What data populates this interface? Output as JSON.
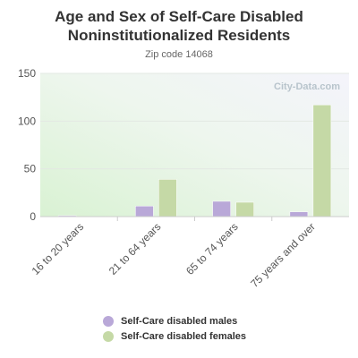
{
  "chart_data": {
    "type": "bar",
    "title": "Age and Sex of Self-Care Disabled Noninstitutionalized Residents",
    "title_lines": [
      "Age and Sex of Self-Care Disabled",
      "Noninstitutionalized Residents"
    ],
    "subtitle": "Zip code 14068",
    "watermark": "City-Data.com",
    "categories": [
      "16 to 20 years",
      "21 to 64 years",
      "65 to 74 years",
      "75 years and over"
    ],
    "series": [
      {
        "name": "Self-Care disabled males",
        "values": [
          1,
          11,
          16,
          5
        ],
        "color": "#b9a8d8"
      },
      {
        "name": "Self-Care disabled females",
        "values": [
          0,
          39,
          15,
          117
        ],
        "color": "#c5d9a6"
      }
    ],
    "xlabel": "",
    "ylabel": "",
    "ylim": [
      0,
      150
    ],
    "yticks": [
      0,
      50,
      100,
      150
    ],
    "grid": true,
    "legend_placement": "bottom"
  }
}
